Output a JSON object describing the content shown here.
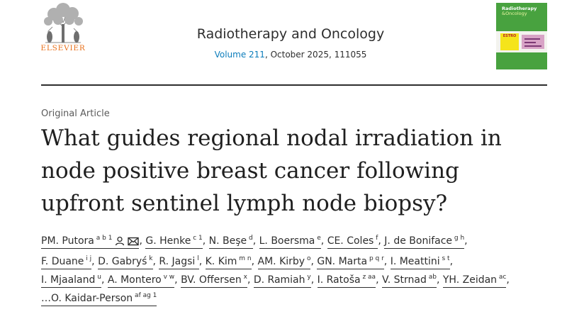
{
  "header": {
    "publisher": "ELSEVIER",
    "journal": "Radiotherapy and Oncology",
    "volume_link": "Volume 211",
    "volume_rest": ", October 2025, 111055",
    "cover": {
      "line1": "Radiotherapy",
      "line2": "&Oncology",
      "badge": "ESTRO"
    }
  },
  "article": {
    "type": "Original Article",
    "title_lines": [
      "What guides regional nodal irradiation in",
      "node positive breast cancer following",
      "upfront sentinel lymph node biopsy?"
    ]
  },
  "icons": [
    "person-icon",
    "mail-icon"
  ],
  "colors": {
    "publisher": "#e9711c",
    "link": "#0c7dbb",
    "cover": "#48a23f"
  },
  "authors": [
    {
      "name": "PM. Putora",
      "sup": "a b 1",
      "icons": true
    },
    {
      "name": "G. Henke",
      "sup": "c 1"
    },
    {
      "name": "N. Beşe",
      "sup": "d"
    },
    {
      "name": "L. Boersma",
      "sup": "e"
    },
    {
      "name": "CE. Coles",
      "sup": "f"
    },
    {
      "name": "J. de Boniface",
      "sup": "g h"
    },
    {
      "name": "F. Duane",
      "sup": "i j"
    },
    {
      "name": "D. Gabryś",
      "sup": "k"
    },
    {
      "name": "R. Jagsi",
      "sup": "l"
    },
    {
      "name": "K. Kim",
      "sup": "m n"
    },
    {
      "name": "AM. Kirby",
      "sup": "o"
    },
    {
      "name": "GN. Marta",
      "sup": "p q r"
    },
    {
      "name": "I. Meattini",
      "sup": "s t"
    },
    {
      "name": "I. Mjaaland",
      "sup": "u"
    },
    {
      "name": "A. Montero",
      "sup": "v w"
    },
    {
      "name": "BV. Offersen",
      "sup": "x"
    },
    {
      "name": "D. Ramiah",
      "sup": "y"
    },
    {
      "name": "I. Ratoša",
      "sup": "z aa"
    },
    {
      "name": "V. Strnad",
      "sup": "ab"
    },
    {
      "name": "YH. Zeidan",
      "sup": "ac"
    },
    {
      "name": "…O. Kaidar-Person",
      "sup": "af ag 1"
    }
  ],
  "author_lines": [
    [
      0,
      1,
      2,
      3,
      4,
      5
    ],
    [
      6,
      7,
      8,
      9,
      10,
      11,
      12
    ],
    [
      13,
      14,
      15,
      16,
      17,
      18,
      19
    ],
    [
      20
    ]
  ]
}
